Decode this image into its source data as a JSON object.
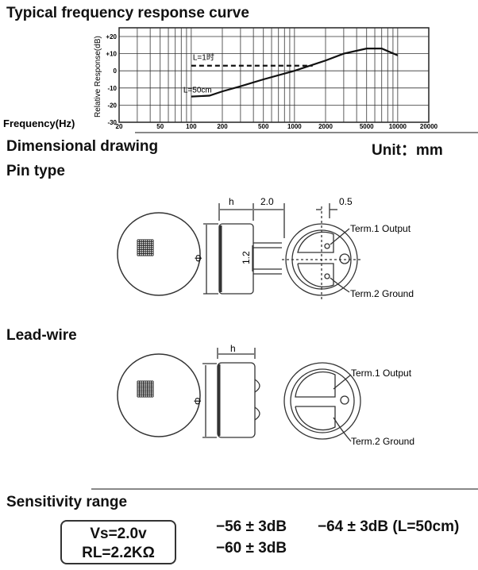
{
  "headings": {
    "freq_title": "Typical frequency response curve",
    "dimensional": "Dimensional drawing",
    "unit": "Unit：mm",
    "pin_type": "Pin type",
    "lead_wire": "Lead-wire",
    "sensitivity": "Sensitivity range"
  },
  "chart_data": {
    "type": "line",
    "xlabel": "Frequency(Hz)",
    "ylabel": "Relative Response(dB)",
    "x_scale": "log",
    "xlim": [
      20,
      20000
    ],
    "ylim": [
      -30,
      20
    ],
    "x_ticks": [
      "20",
      "50",
      "100",
      "200",
      "500",
      "1000",
      "2000",
      "5000",
      "10000",
      "20000"
    ],
    "y_ticks": [
      "+20",
      "+10",
      "0",
      "-10",
      "-20",
      "-30"
    ],
    "grid": true,
    "series": [
      {
        "name": "L=50cm",
        "style": "solid",
        "x": [
          100,
          150,
          200,
          300,
          500,
          1000,
          2000,
          3000,
          5000,
          7000,
          10000
        ],
        "y": [
          -15,
          -14.5,
          -12,
          -9,
          -5,
          0,
          6,
          10,
          13,
          13,
          9
        ]
      },
      {
        "name": "L=1时",
        "style": "dashed",
        "x": [
          100,
          1500
        ],
        "y": [
          3,
          3
        ]
      }
    ]
  },
  "pin_drawing": {
    "h": "h",
    "d": "2.0",
    "pitch": "1.2",
    "offset": "0.5",
    "phi": "Φ",
    "term1": "Term.1 Output",
    "term2": "Term.2 Ground"
  },
  "lead_drawing": {
    "h": "h",
    "phi": "Φ",
    "term1": "Term.1 Output",
    "term2": "Term.2 Ground"
  },
  "sensitivity": {
    "vs": "Vs=2.0v",
    "rl": "RL=2.2KΩ",
    "values": [
      "−56 ± 3dB",
      "−64 ± 3dB (L=50cm)",
      "−60 ± 3dB"
    ]
  }
}
